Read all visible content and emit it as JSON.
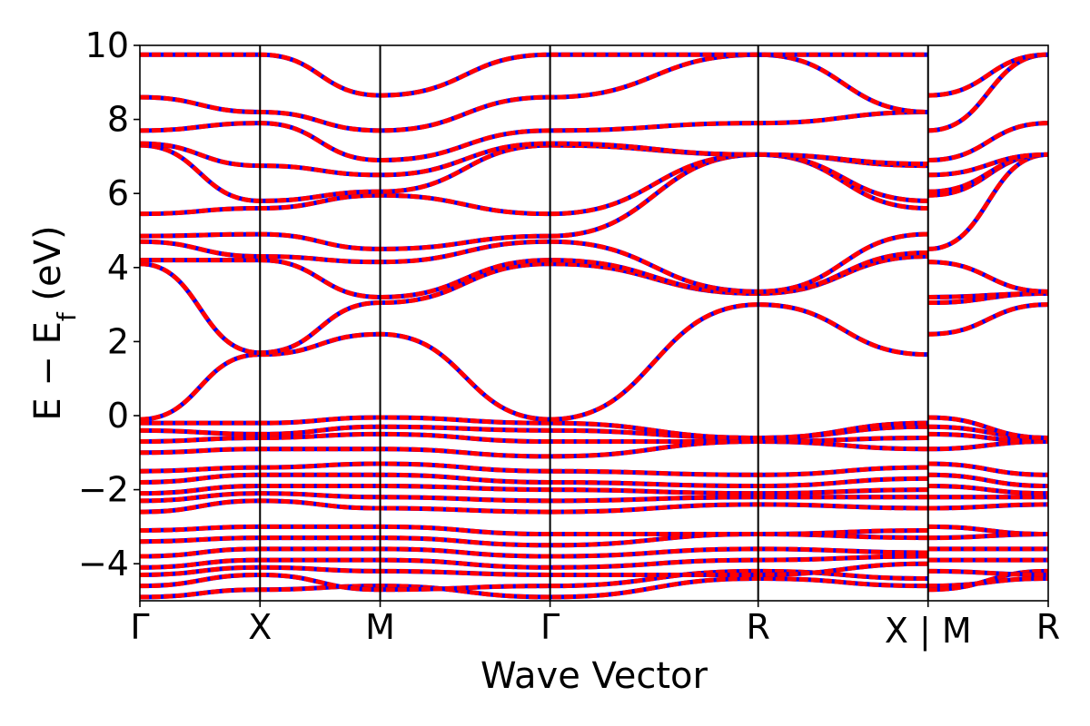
{
  "chart_data": {
    "type": "line",
    "title": "",
    "xlabel": "Wave Vector",
    "ylabel": "E − E",
    "ylabel_subscript": "f",
    "ylabel_suffix": " (eV)",
    "ylim": [
      -5,
      10
    ],
    "yticks": [
      -4,
      -2,
      0,
      2,
      4,
      6,
      8,
      10
    ],
    "ytick_labels": [
      "−4",
      "−2",
      "0",
      "2",
      "4",
      "6",
      "8",
      "10"
    ],
    "kpoint_labels": [
      "Γ",
      "X",
      "M",
      "Γ",
      "R",
      "X | M",
      "R"
    ],
    "kpoint_positions": [
      0,
      0.5,
      1.0,
      1.7071,
      2.5731,
      3.2802,
      3.7802
    ],
    "grid": false,
    "legend": "none",
    "colors": {
      "series_a": "#0000ff",
      "series_b": "#ff0000"
    },
    "series_style": {
      "series_a": "solid",
      "series_b": "dashed"
    },
    "bands": [
      {
        "x": [
          0,
          0.5,
          1.0,
          1.7071,
          2.5731,
          3.2802,
          3.2802,
          3.7802
        ],
        "y": [
          -4.9,
          -4.7,
          -4.6,
          -4.9,
          -4.4,
          -4.6,
          -4.6,
          -4.4
        ]
      },
      {
        "x": [
          0,
          0.5,
          1.0,
          1.7071,
          2.5731,
          3.2802,
          3.2802,
          3.7802
        ],
        "y": [
          -4.6,
          -4.3,
          -4.7,
          -4.6,
          -4.2,
          -4.4,
          -4.7,
          -4.2
        ]
      },
      {
        "x": [
          0,
          0.5,
          1.0,
          1.7071,
          2.5731,
          3.2802,
          3.2802,
          3.7802
        ],
        "y": [
          -4.3,
          -4.1,
          -4.2,
          -4.3,
          -4.3,
          -4.0,
          -4.2,
          -4.3
        ]
      },
      {
        "x": [
          0,
          0.5,
          1.0,
          1.7071,
          2.5731,
          3.2802,
          3.2802,
          3.7802
        ],
        "y": [
          -4.1,
          -3.9,
          -3.9,
          -4.1,
          -3.9,
          -3.8,
          -3.9,
          -3.9
        ]
      },
      {
        "x": [
          0,
          0.5,
          1.0,
          1.7071,
          2.5731,
          3.2802,
          3.2802,
          3.7802
        ],
        "y": [
          -3.8,
          -3.6,
          -3.6,
          -3.8,
          -3.6,
          -3.7,
          -3.6,
          -3.6
        ]
      },
      {
        "x": [
          0,
          0.5,
          1.0,
          1.7071,
          2.5731,
          3.2802,
          3.2802,
          3.7802
        ],
        "y": [
          -3.4,
          -3.3,
          -3.3,
          -3.5,
          -3.2,
          -3.3,
          -3.3,
          -3.2
        ]
      },
      {
        "x": [
          0,
          0.5,
          1.0,
          1.7071,
          2.5731,
          3.2802,
          3.2802,
          3.7802
        ],
        "y": [
          -3.1,
          -3.0,
          -3.0,
          -3.2,
          -3.2,
          -3.1,
          -3.0,
          -3.2
        ]
      },
      {
        "x": [
          0,
          0.5,
          1.0,
          1.7071,
          2.5731,
          3.2802,
          3.2802,
          3.7802
        ],
        "y": [
          -2.6,
          -2.3,
          -2.5,
          -2.6,
          -2.4,
          -2.5,
          -2.5,
          -2.4
        ]
      },
      {
        "x": [
          0,
          0.5,
          1.0,
          1.7071,
          2.5731,
          3.2802,
          3.2802,
          3.7802
        ],
        "y": [
          -2.3,
          -2.1,
          -2.2,
          -2.3,
          -2.2,
          -2.2,
          -2.2,
          -2.2
        ]
      },
      {
        "x": [
          0,
          0.5,
          1.0,
          1.7071,
          2.5731,
          3.2802,
          3.2802,
          3.7802
        ],
        "y": [
          -2.1,
          -1.9,
          -1.9,
          -2.0,
          -2.1,
          -2.0,
          -1.9,
          -2.1
        ]
      },
      {
        "x": [
          0,
          0.5,
          1.0,
          1.7071,
          2.5731,
          3.2802,
          3.2802,
          3.7802
        ],
        "y": [
          -1.8,
          -1.6,
          -1.6,
          -1.8,
          -1.9,
          -1.7,
          -1.6,
          -1.9
        ]
      },
      {
        "x": [
          0,
          0.5,
          1.0,
          1.7071,
          2.5731,
          3.2802,
          3.2802,
          3.7802
        ],
        "y": [
          -1.5,
          -1.4,
          -1.3,
          -1.5,
          -1.6,
          -1.4,
          -1.3,
          -1.6
        ]
      },
      {
        "x": [
          0,
          0.5,
          1.0,
          1.7071,
          2.5731,
          3.2802,
          3.2802,
          3.7802
        ],
        "y": [
          -1.0,
          -0.9,
          -0.9,
          -1.1,
          -0.7,
          -0.9,
          -0.9,
          -0.7
        ]
      },
      {
        "x": [
          0,
          0.5,
          1.0,
          1.7071,
          2.5731,
          3.2802,
          3.2802,
          3.7802
        ],
        "y": [
          -0.7,
          -0.6,
          -0.5,
          -0.7,
          -0.7,
          -0.6,
          -0.5,
          -0.7
        ]
      },
      {
        "x": [
          0,
          0.5,
          1.0,
          1.7071,
          2.5731,
          3.2802,
          3.2802,
          3.7802
        ],
        "y": [
          -0.4,
          -0.5,
          -0.3,
          -0.4,
          -0.6,
          -0.3,
          -0.3,
          -0.6
        ]
      },
      {
        "x": [
          0,
          0.5,
          1.0,
          1.7071,
          2.5731,
          3.2802,
          3.2802,
          3.7802
        ],
        "y": [
          -0.2,
          -0.2,
          -0.05,
          -0.2,
          -0.6,
          -0.2,
          -0.05,
          -0.6
        ]
      },
      {
        "x": [
          0,
          0.5,
          1.0,
          1.7071,
          2.5731,
          3.2802,
          3.2802,
          3.7802
        ],
        "y": [
          -0.1,
          1.65,
          2.2,
          -0.1,
          3.0,
          1.65,
          2.2,
          3.0
        ]
      },
      {
        "x": [
          0,
          0.5,
          1.0,
          1.7071,
          2.5731,
          3.2802,
          3.2802,
          3.7802
        ],
        "y": [
          4.1,
          1.7,
          3.05,
          4.1,
          3.3,
          4.3,
          3.05,
          3.3
        ]
      },
      {
        "x": [
          0,
          0.5,
          1.0,
          1.7071,
          2.5731,
          3.2802,
          3.2802,
          3.7802
        ],
        "y": [
          4.2,
          4.2,
          3.2,
          4.2,
          3.3,
          4.4,
          3.2,
          3.3
        ]
      },
      {
        "x": [
          0,
          0.5,
          1.0,
          1.7071,
          2.5731,
          3.2802,
          3.2802,
          3.7802
        ],
        "y": [
          4.7,
          4.3,
          4.15,
          4.7,
          3.35,
          4.9,
          4.15,
          3.35
        ]
      },
      {
        "x": [
          0,
          0.5,
          1.0,
          1.7071,
          2.5731,
          3.2802,
          3.2802,
          3.7802
        ],
        "y": [
          4.85,
          4.9,
          4.5,
          4.85,
          7.05,
          5.6,
          4.5,
          7.05
        ]
      },
      {
        "x": [
          0,
          0.5,
          1.0,
          1.7071,
          2.5731,
          3.2802,
          3.2802,
          3.7802
        ],
        "y": [
          5.45,
          5.6,
          5.95,
          5.45,
          7.05,
          5.8,
          5.95,
          7.05
        ]
      },
      {
        "x": [
          0,
          0.5,
          1.0,
          1.7071,
          2.5731,
          3.2802,
          3.2802,
          3.7802
        ],
        "y": [
          7.3,
          5.8,
          6.05,
          7.3,
          7.05,
          6.75,
          6.05,
          7.05
        ]
      },
      {
        "x": [
          0,
          0.5,
          1.0,
          1.7071,
          2.5731,
          3.2802,
          3.2802,
          3.7802
        ],
        "y": [
          7.35,
          6.75,
          6.5,
          7.35,
          7.05,
          6.8,
          6.5,
          7.05
        ]
      },
      {
        "x": [
          0,
          0.5,
          1.0,
          1.7071,
          2.5731,
          3.2802,
          3.2802,
          3.7802
        ],
        "y": [
          7.7,
          7.9,
          6.9,
          7.7,
          7.9,
          8.2,
          6.9,
          7.9
        ]
      },
      {
        "x": [
          0,
          0.5,
          1.0,
          1.7071,
          2.5731,
          3.2802,
          3.2802,
          3.7802
        ],
        "y": [
          8.6,
          8.2,
          7.7,
          8.6,
          9.75,
          8.2,
          7.7,
          9.75
        ]
      },
      {
        "x": [
          0,
          0.5,
          1.0,
          1.7071,
          2.5731,
          3.2802,
          3.2802,
          3.7802
        ],
        "y": [
          9.75,
          9.75,
          8.65,
          9.75,
          9.75,
          9.75,
          8.65,
          9.75
        ]
      }
    ]
  }
}
